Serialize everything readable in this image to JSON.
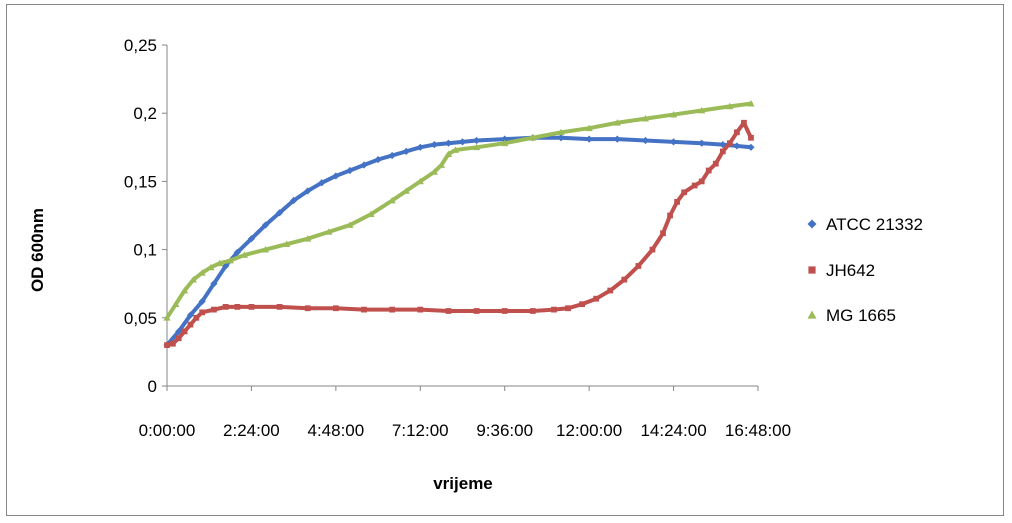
{
  "chart_data": {
    "type": "scatter",
    "title": "",
    "xlabel": "vrijeme",
    "ylabel": "OD 600nm",
    "x_unit": "time h:mm:ss",
    "xlim": [
      "0:00:00",
      "16:48:00"
    ],
    "ylim": [
      0,
      0.25
    ],
    "x_ticks": [
      "0:00:00",
      "2:24:00",
      "4:48:00",
      "7:12:00",
      "9:36:00",
      "12:00:00",
      "14:24:00",
      "16:48:00"
    ],
    "y_ticks": [
      "0",
      "0,05",
      "0,1",
      "0,15",
      "0,2",
      "0,25"
    ],
    "grid": false,
    "legend_position": "right",
    "series": [
      {
        "name": "ATCC 21332",
        "color": "#4472C4",
        "marker": "diamond",
        "points": [
          [
            "0:00:00",
            0.03
          ],
          [
            "0:20:00",
            0.04
          ],
          [
            "0:40:00",
            0.052
          ],
          [
            "1:00:00",
            0.062
          ],
          [
            "1:20:00",
            0.075
          ],
          [
            "1:40:00",
            0.088
          ],
          [
            "2:00:00",
            0.098
          ],
          [
            "2:24:00",
            0.108
          ],
          [
            "2:48:00",
            0.118
          ],
          [
            "3:12:00",
            0.127
          ],
          [
            "3:36:00",
            0.136
          ],
          [
            "4:00:00",
            0.143
          ],
          [
            "4:24:00",
            0.149
          ],
          [
            "4:48:00",
            0.154
          ],
          [
            "5:12:00",
            0.158
          ],
          [
            "5:36:00",
            0.162
          ],
          [
            "6:00:00",
            0.166
          ],
          [
            "6:24:00",
            0.169
          ],
          [
            "6:48:00",
            0.172
          ],
          [
            "7:12:00",
            0.175
          ],
          [
            "7:36:00",
            0.177
          ],
          [
            "8:00:00",
            0.178
          ],
          [
            "8:24:00",
            0.179
          ],
          [
            "8:48:00",
            0.18
          ],
          [
            "9:36:00",
            0.181
          ],
          [
            "10:24:00",
            0.182
          ],
          [
            "11:12:00",
            0.182
          ],
          [
            "12:00:00",
            0.181
          ],
          [
            "12:48:00",
            0.181
          ],
          [
            "13:36:00",
            0.18
          ],
          [
            "14:24:00",
            0.179
          ],
          [
            "15:12:00",
            0.178
          ],
          [
            "15:48:00",
            0.177
          ],
          [
            "16:12:00",
            0.176
          ],
          [
            "16:36:00",
            0.175
          ]
        ]
      },
      {
        "name": "JH642",
        "color": "#C0504D",
        "marker": "square",
        "points": [
          [
            "0:00:00",
            0.03
          ],
          [
            "0:10:00",
            0.031
          ],
          [
            "0:20:00",
            0.035
          ],
          [
            "0:30:00",
            0.04
          ],
          [
            "0:40:00",
            0.045
          ],
          [
            "0:50:00",
            0.05
          ],
          [
            "1:00:00",
            0.054
          ],
          [
            "1:20:00",
            0.056
          ],
          [
            "1:40:00",
            0.058
          ],
          [
            "2:00:00",
            0.058
          ],
          [
            "2:24:00",
            0.058
          ],
          [
            "3:12:00",
            0.058
          ],
          [
            "4:00:00",
            0.057
          ],
          [
            "4:48:00",
            0.057
          ],
          [
            "5:36:00",
            0.056
          ],
          [
            "6:24:00",
            0.056
          ],
          [
            "7:12:00",
            0.056
          ],
          [
            "8:00:00",
            0.055
          ],
          [
            "8:48:00",
            0.055
          ],
          [
            "9:36:00",
            0.055
          ],
          [
            "10:24:00",
            0.055
          ],
          [
            "11:00:00",
            0.056
          ],
          [
            "11:24:00",
            0.057
          ],
          [
            "11:48:00",
            0.06
          ],
          [
            "12:12:00",
            0.064
          ],
          [
            "12:36:00",
            0.07
          ],
          [
            "13:00:00",
            0.078
          ],
          [
            "13:24:00",
            0.088
          ],
          [
            "13:48:00",
            0.1
          ],
          [
            "14:06:00",
            0.112
          ],
          [
            "14:18:00",
            0.125
          ],
          [
            "14:30:00",
            0.135
          ],
          [
            "14:42:00",
            0.142
          ],
          [
            "15:00:00",
            0.147
          ],
          [
            "15:12:00",
            0.15
          ],
          [
            "15:24:00",
            0.158
          ],
          [
            "15:36:00",
            0.163
          ],
          [
            "15:48:00",
            0.172
          ],
          [
            "16:00:00",
            0.178
          ],
          [
            "16:12:00",
            0.186
          ],
          [
            "16:24:00",
            0.193
          ],
          [
            "16:36:00",
            0.182
          ]
        ]
      },
      {
        "name": "MG 1665",
        "color": "#9BBB59",
        "marker": "triangle",
        "points": [
          [
            "0:00:00",
            0.05
          ],
          [
            "0:15:00",
            0.06
          ],
          [
            "0:30:00",
            0.07
          ],
          [
            "0:45:00",
            0.078
          ],
          [
            "1:00:00",
            0.083
          ],
          [
            "1:15:00",
            0.087
          ],
          [
            "1:30:00",
            0.09
          ],
          [
            "1:48:00",
            0.092
          ],
          [
            "2:12:00",
            0.096
          ],
          [
            "2:48:00",
            0.1
          ],
          [
            "3:24:00",
            0.104
          ],
          [
            "4:00:00",
            0.108
          ],
          [
            "4:36:00",
            0.113
          ],
          [
            "5:12:00",
            0.118
          ],
          [
            "5:48:00",
            0.126
          ],
          [
            "6:24:00",
            0.136
          ],
          [
            "6:48:00",
            0.143
          ],
          [
            "7:12:00",
            0.15
          ],
          [
            "7:36:00",
            0.157
          ],
          [
            "7:48:00",
            0.162
          ],
          [
            "8:00:00",
            0.17
          ],
          [
            "8:12:00",
            0.173
          ],
          [
            "8:48:00",
            0.175
          ],
          [
            "9:36:00",
            0.178
          ],
          [
            "10:24:00",
            0.182
          ],
          [
            "11:12:00",
            0.186
          ],
          [
            "12:00:00",
            0.189
          ],
          [
            "12:48:00",
            0.193
          ],
          [
            "13:36:00",
            0.196
          ],
          [
            "14:24:00",
            0.199
          ],
          [
            "15:12:00",
            0.202
          ],
          [
            "16:00:00",
            0.205
          ],
          [
            "16:36:00",
            0.207
          ]
        ]
      }
    ]
  }
}
